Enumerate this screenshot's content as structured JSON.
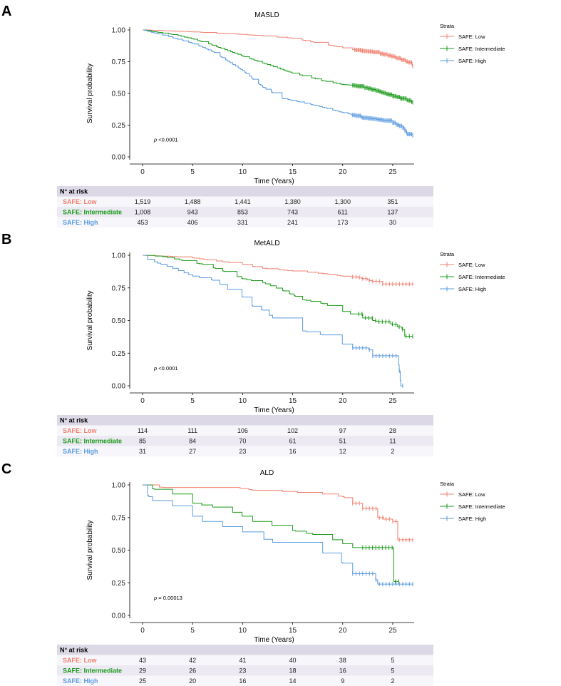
{
  "colors": {
    "low": "#f08070",
    "intermediate": "#1a9a1a",
    "high": "#5b9be0",
    "table_header_bg": "#dcd8e6",
    "table_stripe_bg": "#ece9f2",
    "table_row_bg": "#f7f6fa"
  },
  "legend_title": "Strata",
  "legend_labels": [
    "SAFE: Low",
    "SAFE: Intermediate",
    "SAFE: High"
  ],
  "table_header": "N° at risk",
  "table_row_labels": [
    "SAFE: Low",
    "SAFE: Intermediate",
    "SAFE: High"
  ],
  "chart_data": [
    {
      "panel": "A",
      "type": "line",
      "title": "MASLD",
      "xlabel": "Time (Years)",
      "ylabel": "Survival probability",
      "xlim": [
        0,
        27
      ],
      "ylim": [
        0,
        1
      ],
      "xticks": [
        0,
        5,
        10,
        15,
        20,
        25
      ],
      "yticks": [
        "0.00",
        "0.25",
        "0.50",
        "0.75",
        "1.00"
      ],
      "pvalue_prefix": "p",
      "pvalue_text": "<0.0001",
      "series": [
        {
          "name": "SAFE: Low",
          "steps": 80,
          "censor_from": 21.2,
          "points": [
            [
              0,
              1
            ],
            [
              5,
              0.985
            ],
            [
              10,
              0.965
            ],
            [
              15,
              0.935
            ],
            [
              20,
              0.86
            ],
            [
              21,
              0.845
            ],
            [
              23,
              0.825
            ],
            [
              25,
              0.79
            ],
            [
              26.5,
              0.745
            ],
            [
              27,
              0.715
            ]
          ]
        },
        {
          "name": "SAFE: Intermediate",
          "steps": 120,
          "censor_from": 21.0,
          "points": [
            [
              0,
              1
            ],
            [
              3,
              0.965
            ],
            [
              5,
              0.93
            ],
            [
              7,
              0.88
            ],
            [
              10,
              0.795
            ],
            [
              12,
              0.74
            ],
            [
              15,
              0.66
            ],
            [
              18,
              0.6
            ],
            [
              20,
              0.57
            ],
            [
              21,
              0.565
            ],
            [
              23,
              0.53
            ],
            [
              25,
              0.48
            ],
            [
              26.5,
              0.445
            ],
            [
              27,
              0.43
            ]
          ]
        },
        {
          "name": "SAFE: High",
          "steps": 140,
          "censor_from": 21.0,
          "points": [
            [
              0,
              1
            ],
            [
              2,
              0.96
            ],
            [
              5,
              0.895
            ],
            [
              7,
              0.83
            ],
            [
              10,
              0.68
            ],
            [
              12,
              0.55
            ],
            [
              14,
              0.46
            ],
            [
              15,
              0.445
            ],
            [
              17,
              0.41
            ],
            [
              19,
              0.37
            ],
            [
              21,
              0.33
            ],
            [
              22,
              0.31
            ],
            [
              24,
              0.29
            ],
            [
              25,
              0.27
            ],
            [
              26,
              0.23
            ],
            [
              26.4,
              0.18
            ],
            [
              27,
              0.17
            ]
          ]
        }
      ],
      "at_risk": {
        "times": [
          0,
          5,
          10,
          15,
          20,
          25
        ],
        "rows": [
          [
            "1,519",
            "1,488",
            "1,441",
            "1,380",
            "1,300",
            "351"
          ],
          [
            "1,008",
            "943",
            "853",
            "743",
            "611",
            "137"
          ],
          [
            "453",
            "406",
            "331",
            "241",
            "173",
            "30"
          ]
        ]
      }
    },
    {
      "panel": "B",
      "type": "line",
      "title": "MetALD",
      "xlabel": "Time (Years)",
      "ylabel": "Survival probability",
      "xlim": [
        0,
        27
      ],
      "ylim": [
        0,
        1
      ],
      "xticks": [
        0,
        5,
        10,
        15,
        20,
        25
      ],
      "yticks": [
        "0.00",
        "0.25",
        "0.50",
        "0.75",
        "1.00"
      ],
      "pvalue_prefix": "p",
      "pvalue_text": "<0.0001",
      "series": [
        {
          "name": "SAFE: Low",
          "steps": 34,
          "censor_from": 21.0,
          "points": [
            [
              0,
              1
            ],
            [
              3,
              0.99
            ],
            [
              5,
              0.98
            ],
            [
              8,
              0.95
            ],
            [
              10,
              0.93
            ],
            [
              12,
              0.9
            ],
            [
              15,
              0.88
            ],
            [
              18,
              0.86
            ],
            [
              20,
              0.84
            ],
            [
              21.5,
              0.83
            ],
            [
              23,
              0.8
            ],
            [
              24,
              0.78
            ],
            [
              27,
              0.78
            ]
          ]
        },
        {
          "name": "SAFE: Intermediate",
          "steps": 40,
          "censor_from": 21.6,
          "points": [
            [
              0,
              1
            ],
            [
              2,
              0.99
            ],
            [
              4,
              0.96
            ],
            [
              6,
              0.93
            ],
            [
              8,
              0.88
            ],
            [
              10,
              0.82
            ],
            [
              12,
              0.79
            ],
            [
              14,
              0.73
            ],
            [
              16,
              0.66
            ],
            [
              18,
              0.63
            ],
            [
              20,
              0.57
            ],
            [
              22,
              0.52
            ],
            [
              23,
              0.5
            ],
            [
              25,
              0.47
            ],
            [
              26,
              0.43
            ],
            [
              26.2,
              0.38
            ],
            [
              27,
              0.38
            ]
          ]
        },
        {
          "name": "SAFE: High",
          "steps": 26,
          "censor_from": 21.0,
          "points": [
            [
              0,
              1
            ],
            [
              0.5,
              0.97
            ],
            [
              1.5,
              0.94
            ],
            [
              3,
              0.9
            ],
            [
              5,
              0.84
            ],
            [
              7,
              0.81
            ],
            [
              8.5,
              0.74
            ],
            [
              10,
              0.68
            ],
            [
              11,
              0.61
            ],
            [
              12,
              0.58
            ],
            [
              13,
              0.52
            ],
            [
              15,
              0.52
            ],
            [
              16,
              0.42
            ],
            [
              18,
              0.39
            ],
            [
              20,
              0.32
            ],
            [
              21,
              0.29
            ],
            [
              22.5,
              0.29
            ],
            [
              23,
              0.23
            ],
            [
              25.5,
              0.23
            ],
            [
              25.8,
              0
            ],
            [
              26,
              0
            ]
          ]
        }
      ],
      "at_risk": {
        "times": [
          0,
          5,
          10,
          15,
          20,
          25
        ],
        "rows": [
          [
            "114",
            "111",
            "106",
            "102",
            "97",
            "28"
          ],
          [
            "85",
            "84",
            "70",
            "61",
            "51",
            "11"
          ],
          [
            "31",
            "27",
            "23",
            "16",
            "12",
            "2"
          ]
        ]
      }
    },
    {
      "panel": "C",
      "type": "line",
      "title": "ALD",
      "xlabel": "Time (Years)",
      "ylabel": "Survival probability",
      "xlim": [
        0,
        27
      ],
      "ylim": [
        0,
        1
      ],
      "xticks": [
        0,
        5,
        10,
        15,
        20,
        25
      ],
      "yticks": [
        "0.00",
        "0.25",
        "0.50",
        "0.75",
        "1.00"
      ],
      "pvalue_prefix": "p",
      "pvalue_text": "= 0.00013",
      "series": [
        {
          "name": "SAFE: Low",
          "steps": 12,
          "censor_from": 21.0,
          "points": [
            [
              0,
              1
            ],
            [
              2,
              0.98
            ],
            [
              9,
              0.98
            ],
            [
              11,
              0.96
            ],
            [
              14,
              0.95
            ],
            [
              18,
              0.93
            ],
            [
              20,
              0.91
            ],
            [
              21,
              0.86
            ],
            [
              22,
              0.82
            ],
            [
              23.5,
              0.75
            ],
            [
              25,
              0.72
            ],
            [
              25.5,
              0.58
            ],
            [
              27,
              0.58
            ]
          ]
        },
        {
          "name": "SAFE: Intermediate",
          "steps": 12,
          "censor_from": 22.0,
          "points": [
            [
              0,
              1
            ],
            [
              1,
              0.97
            ],
            [
              3,
              0.93
            ],
            [
              5,
              0.86
            ],
            [
              7,
              0.83
            ],
            [
              9,
              0.79
            ],
            [
              10,
              0.76
            ],
            [
              11,
              0.72
            ],
            [
              13,
              0.69
            ],
            [
              15,
              0.65
            ],
            [
              17,
              0.62
            ],
            [
              19,
              0.58
            ],
            [
              20,
              0.55
            ],
            [
              21,
              0.52
            ],
            [
              25,
              0.52
            ],
            [
              25.1,
              0.26
            ],
            [
              25.6,
              0.26
            ]
          ]
        },
        {
          "name": "SAFE: High",
          "steps": 10,
          "censor_from": 21.0,
          "points": [
            [
              0,
              1
            ],
            [
              0.5,
              0.92
            ],
            [
              1,
              0.88
            ],
            [
              3,
              0.84
            ],
            [
              5,
              0.76
            ],
            [
              6,
              0.72
            ],
            [
              8,
              0.68
            ],
            [
              10,
              0.64
            ],
            [
              13,
              0.56
            ],
            [
              17,
              0.56
            ],
            [
              18,
              0.48
            ],
            [
              20,
              0.4
            ],
            [
              21,
              0.32
            ],
            [
              23,
              0.32
            ],
            [
              23.5,
              0.24
            ],
            [
              27,
              0.24
            ]
          ]
        }
      ],
      "at_risk": {
        "times": [
          0,
          5,
          10,
          15,
          20,
          25
        ],
        "rows": [
          [
            "43",
            "42",
            "41",
            "40",
            "38",
            "5"
          ],
          [
            "29",
            "26",
            "23",
            "18",
            "16",
            "5"
          ],
          [
            "25",
            "20",
            "16",
            "14",
            "9",
            "2"
          ]
        ]
      }
    }
  ]
}
